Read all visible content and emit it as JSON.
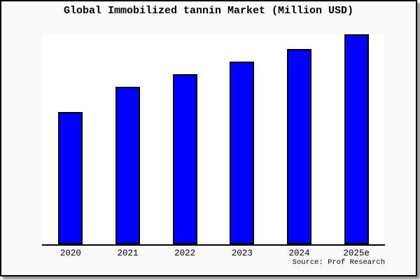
{
  "frame": {
    "background": "#fafafa",
    "plot_background": "#ffffff",
    "border_color": "#000000",
    "shadow_color": "#9b9b9b"
  },
  "chart_data": {
    "type": "bar",
    "title": "Global Immobilized tannin Market (Million USD)",
    "categories": [
      "2020",
      "2021",
      "2022",
      "2023",
      "2024",
      "2025e"
    ],
    "values": [
      63,
      75,
      81,
      87,
      93,
      100
    ],
    "value_scale_note": "no y-axis ticks or value labels shown; values estimated as percent of tallest bar",
    "xlabel": "",
    "ylabel": "",
    "ylim": [
      0,
      100
    ],
    "grid": false,
    "legend": false,
    "bar_color": "#0000ff",
    "bar_border_color": "#000000",
    "axis_color": "#000000",
    "source_note": "Source: Prof Research"
  }
}
